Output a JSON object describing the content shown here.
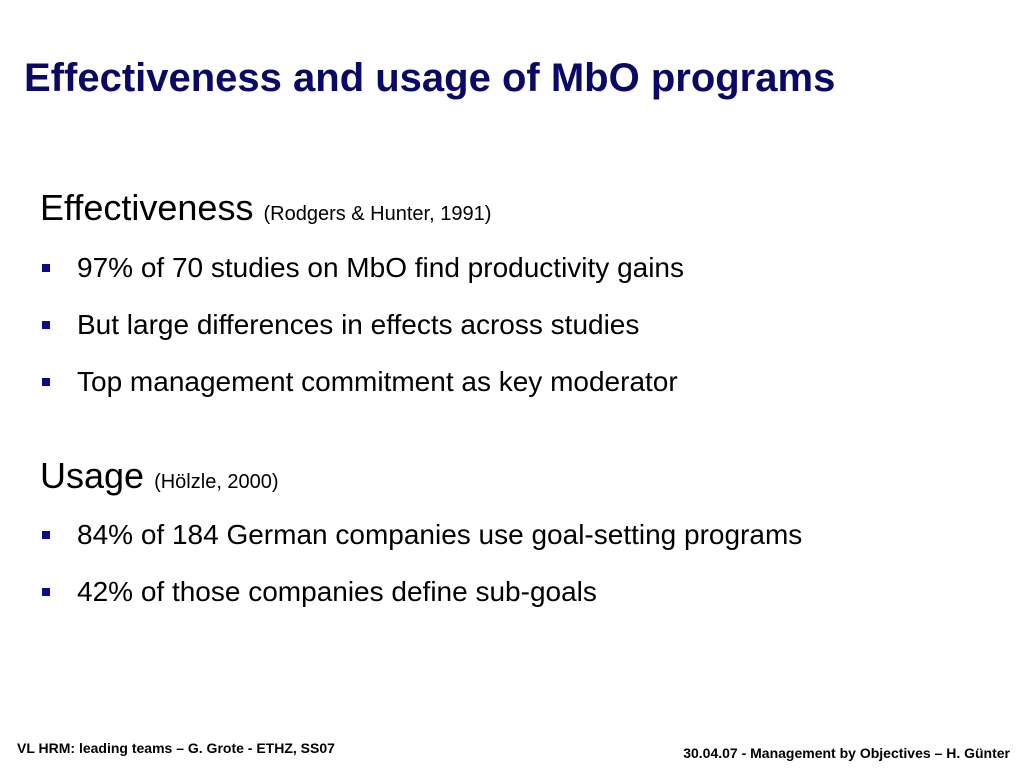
{
  "slide": {
    "title": "Effectiveness and usage of MbO programs"
  },
  "sections": {
    "effectiveness": {
      "heading": "Effectiveness",
      "citation": "(Rodgers & Hunter, 1991)",
      "bullets": [
        "97% of 70 studies on MbO find productivity gains",
        "But large differences in effects across studies",
        "Top management commitment as key moderator"
      ]
    },
    "usage": {
      "heading": "Usage",
      "citation": "(Hölzle, 2000)",
      "bullets": [
        "84% of 184 German companies use goal-setting programs",
        "42% of those companies define sub-goals"
      ]
    }
  },
  "footer": {
    "left": "VL HRM: leading teams – G. Grote - ETHZ, SS07",
    "right": "30.04.07 - Management by Objectives – H. Günter"
  },
  "colors": {
    "title": "#0a0a66",
    "bullet_marker": "#0a0a8c",
    "text": "#000000",
    "background": "#ffffff"
  },
  "icons": {
    "bullet": "square-bullet-icon"
  }
}
